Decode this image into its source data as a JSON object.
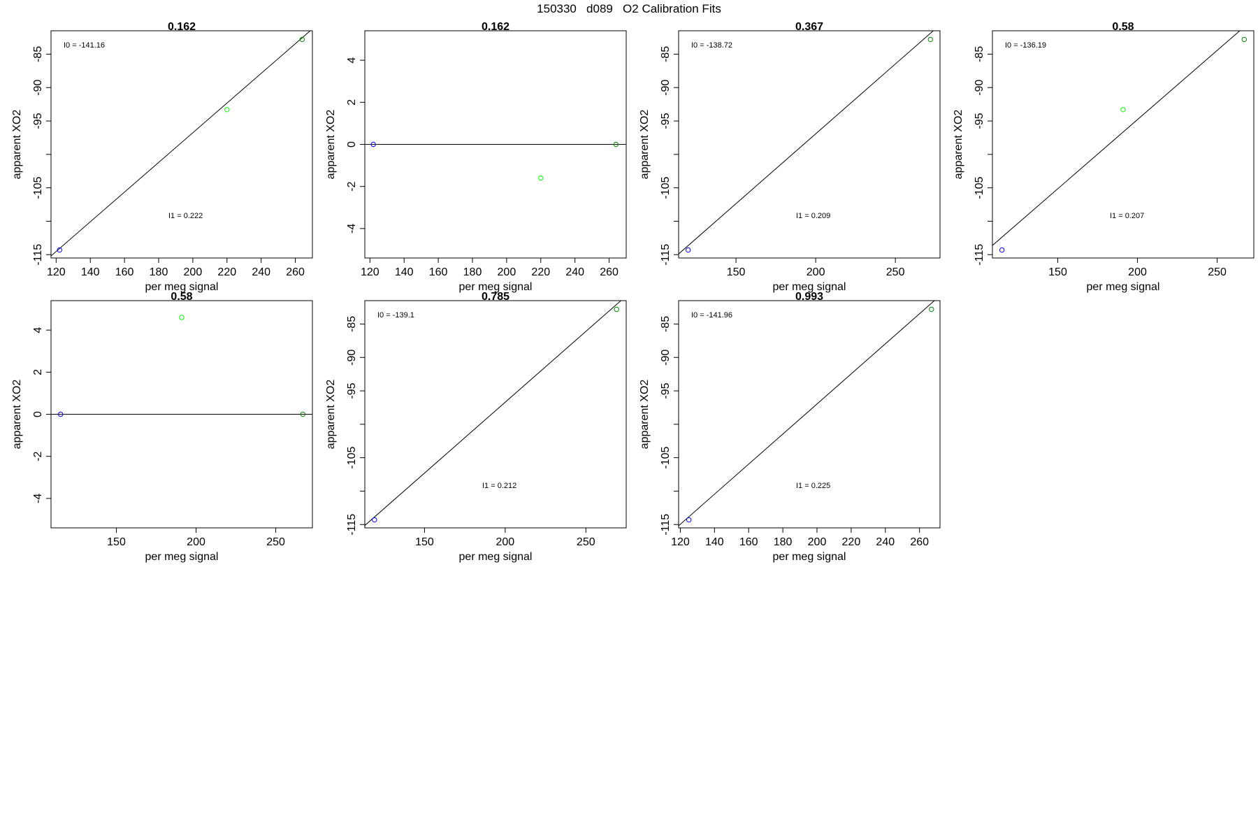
{
  "page_title": "150330   d089   O2 Calibration Fits",
  "colors": {
    "point_blue": "#0000ff",
    "point_green_light": "#00ff00",
    "point_green_dark": "#008800",
    "frame": "#000000",
    "fit_line": "#000000"
  },
  "chart_data": [
    {
      "type": "scatter",
      "title": "0.162",
      "xlabel": "per meg signal",
      "ylabel": "apparent XO2",
      "xlim": [
        117,
        270
      ],
      "ylim": [
        -115.5,
        -81.5
      ],
      "xticks": [
        120,
        140,
        160,
        180,
        200,
        220,
        240,
        260
      ],
      "yticks": [
        -85,
        -90,
        -95,
        -105,
        -115
      ],
      "yticks_minor": [
        -100,
        -110
      ],
      "points": [
        {
          "x": 122,
          "y": -114.3,
          "color": "#0000ff"
        },
        {
          "x": 220,
          "y": -93.3,
          "color": "#00ff00"
        },
        {
          "x": 264,
          "y": -82.8,
          "color": "#008800"
        }
      ],
      "fit_line": {
        "intercept": -141.16,
        "slope": 0.222
      },
      "annotations": {
        "i0": "I0 =  -141.16",
        "i1": "I1 =  0.222"
      }
    },
    {
      "type": "scatter",
      "title": "0.162",
      "xlabel": "per meg signal",
      "ylabel": "apparent XO2",
      "xlim": [
        117,
        270
      ],
      "ylim": [
        -5.4,
        5.4
      ],
      "xticks": [
        120,
        140,
        160,
        180,
        200,
        220,
        240,
        260
      ],
      "yticks": [
        4,
        2,
        0,
        -2,
        -4
      ],
      "yticks_minor": [],
      "points": [
        {
          "x": 122,
          "y": 0,
          "color": "#0000ff"
        },
        {
          "x": 220,
          "y": -1.6,
          "color": "#00ff00"
        },
        {
          "x": 264,
          "y": 0,
          "color": "#008800"
        }
      ],
      "fit_line": {
        "intercept": 0,
        "slope": 0
      },
      "annotations": {
        "i0": "",
        "i1": ""
      }
    },
    {
      "type": "scatter",
      "title": "0.367",
      "xlabel": "per meg signal",
      "ylabel": "apparent XO2",
      "xlim": [
        114,
        278
      ],
      "ylim": [
        -115.5,
        -81.5
      ],
      "xticks": [
        150,
        200,
        250
      ],
      "yticks": [
        -85,
        -90,
        -95,
        -105,
        -115
      ],
      "yticks_minor": [
        -100,
        -110
      ],
      "points": [
        {
          "x": 120,
          "y": -114.3,
          "color": "#0000ff"
        },
        {
          "x": 272,
          "y": -82.8,
          "color": "#008800"
        }
      ],
      "fit_line": {
        "intercept": -138.72,
        "slope": 0.209
      },
      "annotations": {
        "i0": "I0 =  -138.72",
        "i1": "I1 =  0.209"
      }
    },
    {
      "type": "scatter",
      "title": "0.58",
      "xlabel": "per meg signal",
      "ylabel": "apparent XO2",
      "xlim": [
        109,
        273
      ],
      "ylim": [
        -115.5,
        -81.5
      ],
      "xticks": [
        150,
        200,
        250
      ],
      "yticks": [
        -85,
        -90,
        -95,
        -105,
        -115
      ],
      "yticks_minor": [
        -100,
        -110
      ],
      "points": [
        {
          "x": 115,
          "y": -114.3,
          "color": "#0000ff"
        },
        {
          "x": 191,
          "y": -93.3,
          "color": "#00ff00"
        },
        {
          "x": 267,
          "y": -82.8,
          "color": "#008800"
        }
      ],
      "fit_line": {
        "intercept": -136.19,
        "slope": 0.207
      },
      "annotations": {
        "i0": "I0 =  -136.19",
        "i1": "I1 =  0.207"
      }
    },
    {
      "type": "scatter",
      "title": "0.58",
      "xlabel": "per meg signal",
      "ylabel": "apparent XO2",
      "xlim": [
        109,
        273
      ],
      "ylim": [
        -5.4,
        5.4
      ],
      "xticks": [
        150,
        200,
        250
      ],
      "yticks": [
        4,
        2,
        0,
        -2,
        -4
      ],
      "yticks_minor": [],
      "points": [
        {
          "x": 115,
          "y": 0,
          "color": "#0000ff"
        },
        {
          "x": 191,
          "y": 4.6,
          "color": "#00ff00"
        },
        {
          "x": 267,
          "y": 0,
          "color": "#008800"
        }
      ],
      "fit_line": {
        "intercept": 0,
        "slope": 0
      },
      "annotations": {
        "i0": "",
        "i1": ""
      }
    },
    {
      "type": "scatter",
      "title": "0.785",
      "xlabel": "per meg signal",
      "ylabel": "apparent XO2",
      "xlim": [
        113,
        275
      ],
      "ylim": [
        -115.5,
        -81.5
      ],
      "xticks": [
        150,
        200,
        250
      ],
      "yticks": [
        -85,
        -90,
        -95,
        -105,
        -115
      ],
      "yticks_minor": [
        -100,
        -110
      ],
      "points": [
        {
          "x": 119,
          "y": -114.3,
          "color": "#0000ff"
        },
        {
          "x": 269,
          "y": -82.8,
          "color": "#008800"
        }
      ],
      "fit_line": {
        "intercept": -139.1,
        "slope": 0.212
      },
      "annotations": {
        "i0": "I0 =  -139.1",
        "i1": "I1 =  0.212"
      }
    },
    {
      "type": "scatter",
      "title": "0.993",
      "xlabel": "per meg signal",
      "ylabel": "apparent XO2",
      "xlim": [
        119,
        272
      ],
      "ylim": [
        -115.5,
        -81.5
      ],
      "xticks": [
        120,
        140,
        160,
        180,
        200,
        220,
        240,
        260
      ],
      "yticks": [
        -85,
        -90,
        -95,
        -105,
        -115
      ],
      "yticks_minor": [
        -100,
        -110
      ],
      "points": [
        {
          "x": 125,
          "y": -114.3,
          "color": "#0000ff"
        },
        {
          "x": 267,
          "y": -82.8,
          "color": "#008800"
        }
      ],
      "fit_line": {
        "intercept": -141.96,
        "slope": 0.225
      },
      "annotations": {
        "i0": "I0 =  -141.96",
        "i1": "I1 =  0.225"
      }
    }
  ]
}
